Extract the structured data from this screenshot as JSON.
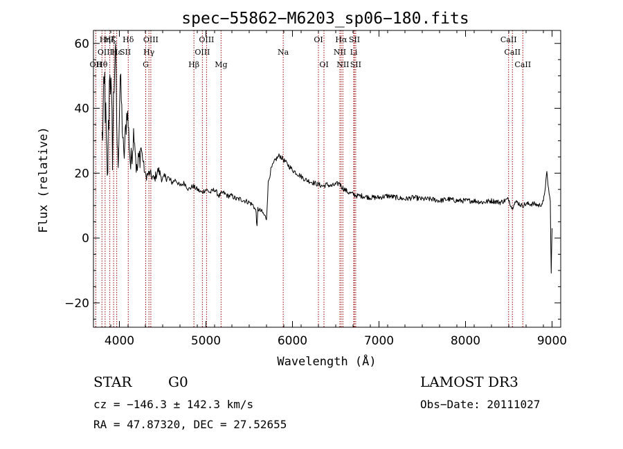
{
  "chart_data": {
    "type": "line",
    "title": "spec−55862−M6203_sp06−180.fits",
    "xlabel": "Wavelength (Å)",
    "ylabel": "Flux (relative)",
    "xlim": [
      3700,
      9100
    ],
    "ylim": [
      -27.5,
      64
    ],
    "x_ticks": [
      4000,
      5000,
      6000,
      7000,
      8000,
      9000
    ],
    "y_ticks": [
      -20,
      0,
      20,
      40,
      60
    ],
    "y_tick_labels": [
      "−20",
      "0",
      "20",
      "40",
      "60"
    ],
    "grid": false,
    "series": [
      {
        "name": "spectrum",
        "points": [
          [
            3800,
            30
          ],
          [
            3830,
            48
          ],
          [
            3860,
            15
          ],
          [
            3890,
            55
          ],
          [
            3920,
            28
          ],
          [
            3950,
            60
          ],
          [
            3980,
            22
          ],
          [
            4010,
            50
          ],
          [
            4050,
            24
          ],
          [
            4090,
            40
          ],
          [
            4130,
            22
          ],
          [
            4170,
            34
          ],
          [
            4200,
            20
          ],
          [
            4250,
            28
          ],
          [
            4300,
            19
          ],
          [
            4350,
            20
          ],
          [
            4400,
            18
          ],
          [
            4450,
            21
          ],
          [
            4500,
            18
          ],
          [
            4550,
            19
          ],
          [
            4600,
            17
          ],
          [
            4650,
            18
          ],
          [
            4700,
            16
          ],
          [
            4750,
            17
          ],
          [
            4800,
            15
          ],
          [
            4850,
            16
          ],
          [
            4900,
            15
          ],
          [
            4950,
            14
          ],
          [
            5000,
            15
          ],
          [
            5050,
            14
          ],
          [
            5100,
            15
          ],
          [
            5150,
            13
          ],
          [
            5200,
            14
          ],
          [
            5250,
            13
          ],
          [
            5300,
            13
          ],
          [
            5350,
            12
          ],
          [
            5400,
            12
          ],
          [
            5450,
            11.5
          ],
          [
            5500,
            11
          ],
          [
            5550,
            10
          ],
          [
            5580,
            8
          ],
          [
            5590,
            3
          ],
          [
            5600,
            9
          ],
          [
            5650,
            8
          ],
          [
            5700,
            6
          ],
          [
            5720,
            17
          ],
          [
            5750,
            21
          ],
          [
            5800,
            24
          ],
          [
            5850,
            25.5
          ],
          [
            5900,
            24
          ],
          [
            5950,
            22.5
          ],
          [
            6000,
            21
          ],
          [
            6050,
            20
          ],
          [
            6100,
            19
          ],
          [
            6150,
            18
          ],
          [
            6200,
            17.5
          ],
          [
            6250,
            17
          ],
          [
            6300,
            16.5
          ],
          [
            6350,
            16
          ],
          [
            6400,
            16.5
          ],
          [
            6450,
            16
          ],
          [
            6500,
            16.5
          ],
          [
            6550,
            17
          ],
          [
            6560,
            16
          ],
          [
            6600,
            15
          ],
          [
            6650,
            14
          ],
          [
            6700,
            13.5
          ],
          [
            6750,
            13
          ],
          [
            6800,
            13
          ],
          [
            6900,
            12.5
          ],
          [
            7000,
            12.5
          ],
          [
            7100,
            13
          ],
          [
            7200,
            12.5
          ],
          [
            7300,
            12
          ],
          [
            7400,
            12.5
          ],
          [
            7500,
            12
          ],
          [
            7600,
            12
          ],
          [
            7700,
            11.5
          ],
          [
            7800,
            12
          ],
          [
            7900,
            11.5
          ],
          [
            8000,
            11.5
          ],
          [
            8100,
            11.5
          ],
          [
            8200,
            11
          ],
          [
            8300,
            11.5
          ],
          [
            8400,
            11
          ],
          [
            8500,
            12
          ],
          [
            8540,
            9
          ],
          [
            8560,
            11
          ],
          [
            8600,
            11
          ],
          [
            8650,
            10
          ],
          [
            8700,
            10.5
          ],
          [
            8800,
            10.5
          ],
          [
            8850,
            10
          ],
          [
            8900,
            11
          ],
          [
            8940,
            20
          ],
          [
            8960,
            15
          ],
          [
            8980,
            11
          ],
          [
            8990,
            -11
          ],
          [
            9000,
            3
          ]
        ]
      }
    ],
    "line_marks": {
      "wavelengths": [
        3727,
        3798,
        3835,
        3889,
        3933,
        3969,
        4102,
        4304,
        4341,
        4363,
        4861,
        4959,
        5007,
        5175,
        5893,
        6300,
        6364,
        6548,
        6563,
        6583,
        6708,
        6716,
        6731,
        8498,
        8542,
        8662
      ],
      "color": "#990000",
      "style": "dotted"
    },
    "line_labels": [
      {
        "text": "Hη",
        "wavelength": 3835,
        "row": 0
      },
      {
        "text": "Hζ",
        "wavelength": 3889,
        "row": 0
      },
      {
        "text": "K",
        "wavelength": 3933,
        "row": 0
      },
      {
        "text": "Hδ",
        "wavelength": 4102,
        "row": 0
      },
      {
        "text": "OIII",
        "wavelength": 4363,
        "row": 0
      },
      {
        "text": "OIII",
        "wavelength": 5007,
        "row": 0
      },
      {
        "text": "OI",
        "wavelength": 6300,
        "row": 0
      },
      {
        "text": "Hα",
        "wavelength": 6563,
        "row": 0
      },
      {
        "text": "SII",
        "wavelength": 6716,
        "row": 0
      },
      {
        "text": "CaII",
        "wavelength": 8498,
        "row": 0
      },
      {
        "text": "OIII",
        "wavelength": 3835,
        "row": 1
      },
      {
        "text": "Hε",
        "wavelength": 3969,
        "row": 1
      },
      {
        "text": "SII",
        "wavelength": 4069,
        "row": 1
      },
      {
        "text": "Hγ",
        "wavelength": 4341,
        "row": 1
      },
      {
        "text": "OIII",
        "wavelength": 4959,
        "row": 1
      },
      {
        "text": "Na",
        "wavelength": 5893,
        "row": 1
      },
      {
        "text": "NII",
        "wavelength": 6548,
        "row": 1
      },
      {
        "text": "Li",
        "wavelength": 6708,
        "row": 1
      },
      {
        "text": "CaII",
        "wavelength": 8542,
        "row": 1
      },
      {
        "text": "OII",
        "wavelength": 3727,
        "row": 2
      },
      {
        "text": "Hθ",
        "wavelength": 3798,
        "row": 2
      },
      {
        "text": "G",
        "wavelength": 4304,
        "row": 2
      },
      {
        "text": "Hβ",
        "wavelength": 4861,
        "row": 2
      },
      {
        "text": "Mg",
        "wavelength": 5175,
        "row": 2
      },
      {
        "text": "OI",
        "wavelength": 6364,
        "row": 2
      },
      {
        "text": "NII",
        "wavelength": 6583,
        "row": 2
      },
      {
        "text": "SII",
        "wavelength": 6731,
        "row": 2
      },
      {
        "text": "CaII",
        "wavelength": 8662,
        "row": 2
      }
    ]
  },
  "info": {
    "class": "STAR",
    "subclass": "G0",
    "survey": "LAMOST DR3",
    "cz": "cz = −146.3 ± 142.3 km/s",
    "obs_date": "Obs−Date: 20111027",
    "coords": "RA =  47.87320, DEC =  27.52655"
  }
}
